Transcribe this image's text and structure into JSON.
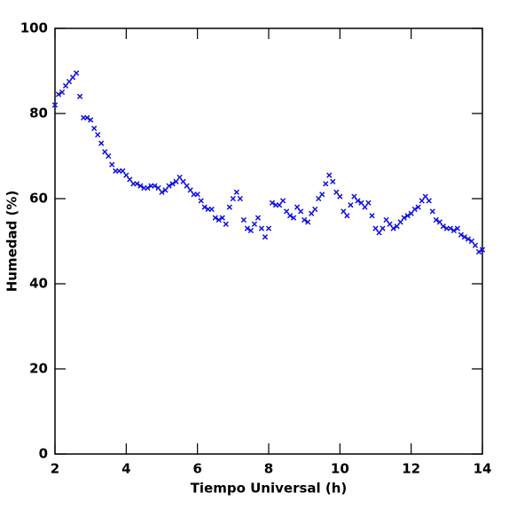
{
  "chart_data": {
    "type": "scatter",
    "x_label": "Tiempo Universal (h)",
    "y_label": "Humedad (%)",
    "color": "#1010e0",
    "xlim": [
      2,
      14
    ],
    "ylim": [
      0,
      100
    ],
    "xticks": [
      2,
      4,
      6,
      8,
      10,
      12,
      14
    ],
    "yticks": [
      0,
      20,
      40,
      60,
      80,
      100
    ],
    "x": [
      2.0,
      2.1,
      2.2,
      2.3,
      2.4,
      2.5,
      2.6,
      2.7,
      2.8,
      2.9,
      3.0,
      3.1,
      3.2,
      3.3,
      3.4,
      3.5,
      3.6,
      3.7,
      3.8,
      3.9,
      4.0,
      4.1,
      4.2,
      4.3,
      4.4,
      4.5,
      4.6,
      4.7,
      4.8,
      4.9,
      5.0,
      5.1,
      5.2,
      5.3,
      5.4,
      5.5,
      5.6,
      5.7,
      5.8,
      5.9,
      6.0,
      6.1,
      6.2,
      6.3,
      6.4,
      6.5,
      6.6,
      6.7,
      6.8,
      6.9,
      7.0,
      7.1,
      7.2,
      7.3,
      7.4,
      7.5,
      7.6,
      7.7,
      7.8,
      7.9,
      8.0,
      8.1,
      8.2,
      8.3,
      8.4,
      8.5,
      8.6,
      8.7,
      8.8,
      8.9,
      9.0,
      9.1,
      9.2,
      9.3,
      9.4,
      9.5,
      9.6,
      9.7,
      9.8,
      9.9,
      10.0,
      10.1,
      10.2,
      10.3,
      10.4,
      10.5,
      10.6,
      10.7,
      10.8,
      10.9,
      11.0,
      11.1,
      11.2,
      11.3,
      11.4,
      11.5,
      11.6,
      11.7,
      11.8,
      11.9,
      12.0,
      12.1,
      12.2,
      12.3,
      12.4,
      12.5,
      12.6,
      12.7,
      12.8,
      12.9,
      13.0,
      13.1,
      13.2,
      13.3,
      13.4,
      13.5,
      13.6,
      13.7,
      13.8,
      13.9,
      14.0
    ],
    "values": [
      82,
      84.5,
      85,
      86.5,
      87.5,
      88.5,
      89.5,
      84,
      79,
      79,
      78.5,
      76.5,
      75,
      73,
      71,
      70,
      68,
      66.5,
      66.5,
      66.5,
      65.5,
      64.5,
      63.5,
      63.5,
      63,
      62.5,
      62.5,
      63,
      63,
      62.5,
      61.5,
      62,
      63,
      63.5,
      64,
      65,
      64,
      63,
      62,
      61,
      61,
      59.5,
      58,
      57.5,
      57.5,
      55.5,
      55,
      55.5,
      54,
      58,
      60,
      61.5,
      60,
      55,
      53,
      52.5,
      54,
      55.5,
      53,
      51,
      53,
      59,
      58.5,
      58.5,
      59.5,
      57,
      56,
      55.5,
      58,
      57,
      55,
      54.5,
      56.5,
      57.5,
      60,
      61,
      63.5,
      65.5,
      64,
      61.5,
      60.5,
      57,
      56,
      58.5,
      60.5,
      59.5,
      59,
      58,
      59,
      56,
      53,
      52,
      53,
      55,
      54,
      53,
      53.5,
      54.5,
      55.5,
      56,
      56.5,
      57.5,
      58,
      59.5,
      60.5,
      59.5,
      57,
      55,
      54.5,
      53.5,
      53,
      53,
      52.5,
      53,
      51.5,
      51,
      50.5,
      50,
      49,
      47.5,
      48
    ]
  }
}
